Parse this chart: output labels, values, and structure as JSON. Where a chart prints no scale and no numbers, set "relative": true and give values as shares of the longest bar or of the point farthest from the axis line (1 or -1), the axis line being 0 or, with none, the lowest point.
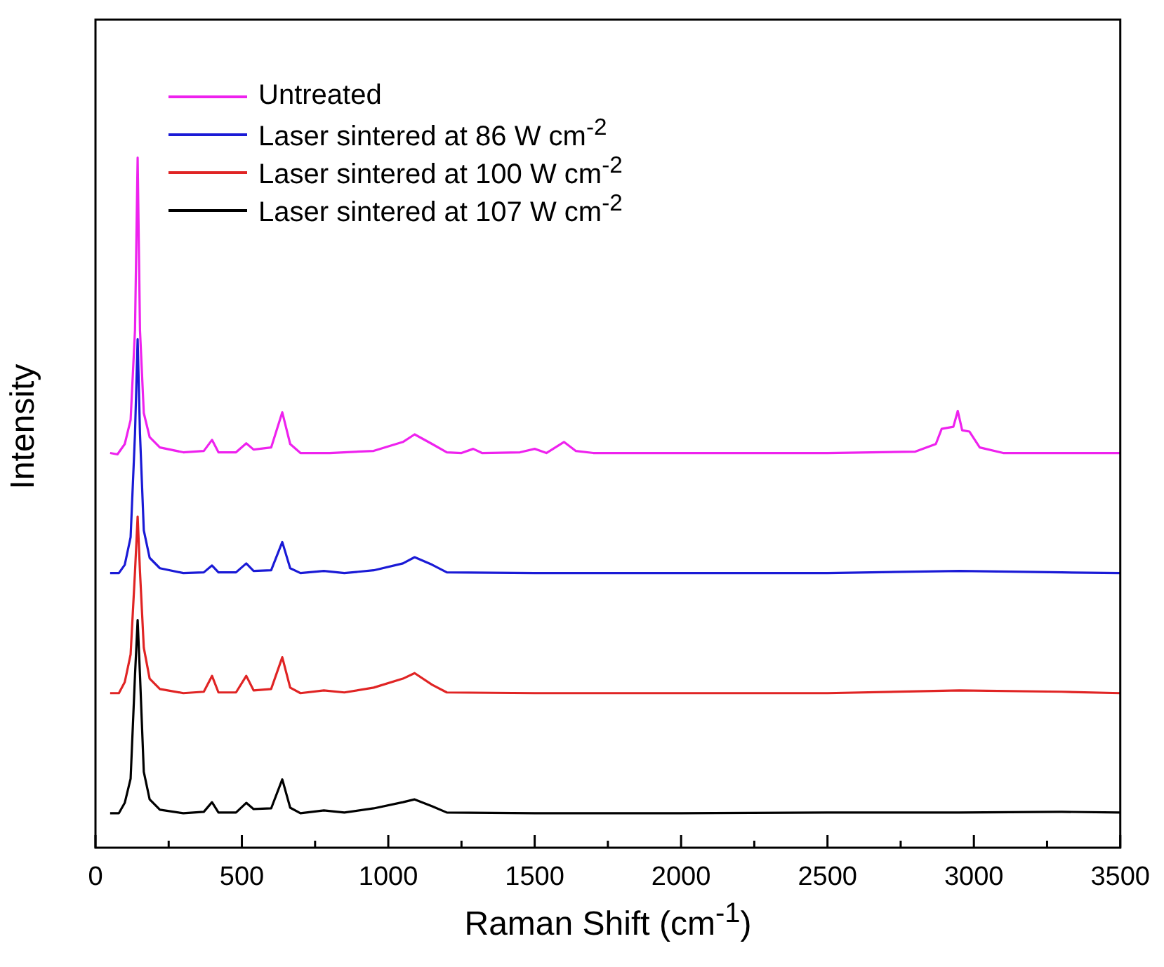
{
  "chart_data": {
    "type": "line",
    "xlabel": "Raman Shift (cm$^{-1}$)",
    "ylabel": "Intensity",
    "relative": true,
    "legend": "top left",
    "marker": "none",
    "xlim": [
      0,
      3500
    ],
    "xticks": [
      0,
      {
        "value": 250,
        "label": null
      },
      500,
      {
        "value": 750,
        "label": null
      },
      1000,
      {
        "value": 1250,
        "label": null
      },
      1500,
      {
        "value": 1750,
        "label": null
      },
      2000,
      {
        "value": 2250,
        "label": null
      },
      2500,
      {
        "value": 2750,
        "label": null
      },
      3000,
      {
        "value": 3250,
        "label": null
      },
      3500
    ],
    "series": [
      {
        "name": "Untreated",
        "color": "#ee22ee",
        "x": [
          50,
          75,
          100,
          120,
          135,
          144,
          152,
          165,
          185,
          220,
          300,
          370,
          398,
          420,
          480,
          515,
          540,
          600,
          638,
          665,
          700,
          800,
          950,
          1050,
          1090,
          1150,
          1200,
          1250,
          1290,
          1320,
          1450,
          1500,
          1540,
          1600,
          1640,
          1700,
          2000,
          2500,
          2800,
          2870,
          2890,
          2930,
          2945,
          2960,
          2985,
          3020,
          3100,
          3500
        ],
        "values": [
          0.572,
          0.57,
          0.585,
          0.62,
          0.75,
          1.0,
          0.75,
          0.63,
          0.595,
          0.58,
          0.573,
          0.575,
          0.591,
          0.573,
          0.573,
          0.586,
          0.577,
          0.58,
          0.631,
          0.585,
          0.572,
          0.572,
          0.575,
          0.588,
          0.599,
          0.585,
          0.573,
          0.572,
          0.578,
          0.572,
          0.573,
          0.578,
          0.572,
          0.588,
          0.575,
          0.572,
          0.572,
          0.572,
          0.574,
          0.585,
          0.607,
          0.61,
          0.633,
          0.605,
          0.603,
          0.58,
          0.572,
          0.572
        ]
      },
      {
        "name": "Laser sintered at 86 W cm$^{-2}$",
        "color": "#1a1ad6",
        "x": [
          50,
          80,
          100,
          120,
          135,
          144,
          152,
          165,
          185,
          220,
          300,
          370,
          398,
          420,
          480,
          515,
          540,
          600,
          638,
          665,
          700,
          780,
          850,
          950,
          1050,
          1090,
          1150,
          1200,
          1500,
          2000,
          2500,
          2950,
          3300,
          3500
        ],
        "values": [
          0.398,
          0.398,
          0.41,
          0.45,
          0.6,
          0.737,
          0.6,
          0.46,
          0.42,
          0.405,
          0.398,
          0.399,
          0.409,
          0.399,
          0.399,
          0.412,
          0.401,
          0.402,
          0.443,
          0.405,
          0.398,
          0.401,
          0.398,
          0.402,
          0.412,
          0.421,
          0.41,
          0.399,
          0.398,
          0.398,
          0.398,
          0.401,
          0.399,
          0.398
        ]
      },
      {
        "name": "Laser sintered at 100 W cm$^{-2}$",
        "color": "#e02424",
        "x": [
          50,
          80,
          100,
          120,
          135,
          144,
          152,
          165,
          185,
          220,
          300,
          370,
          398,
          420,
          480,
          515,
          540,
          600,
          638,
          665,
          700,
          780,
          850,
          950,
          1050,
          1090,
          1150,
          1200,
          1500,
          2000,
          2500,
          2950,
          3300,
          3500
        ],
        "values": [
          0.224,
          0.224,
          0.24,
          0.28,
          0.4,
          0.48,
          0.4,
          0.29,
          0.245,
          0.23,
          0.224,
          0.226,
          0.249,
          0.225,
          0.225,
          0.249,
          0.228,
          0.23,
          0.276,
          0.232,
          0.224,
          0.228,
          0.225,
          0.232,
          0.245,
          0.253,
          0.236,
          0.225,
          0.224,
          0.224,
          0.224,
          0.228,
          0.226,
          0.224
        ]
      },
      {
        "name": "Laser sintered at 107 W cm$^{-2}$",
        "color": "#000000",
        "x": [
          50,
          80,
          100,
          120,
          135,
          144,
          152,
          165,
          185,
          220,
          300,
          370,
          398,
          420,
          480,
          515,
          540,
          600,
          638,
          665,
          700,
          780,
          850,
          950,
          1050,
          1090,
          1150,
          1200,
          1500,
          2000,
          2500,
          2950,
          3300,
          3500
        ],
        "values": [
          0.05,
          0.05,
          0.065,
          0.1,
          0.25,
          0.33,
          0.25,
          0.11,
          0.07,
          0.055,
          0.05,
          0.052,
          0.066,
          0.051,
          0.051,
          0.065,
          0.056,
          0.057,
          0.099,
          0.058,
          0.05,
          0.054,
          0.051,
          0.057,
          0.066,
          0.07,
          0.06,
          0.051,
          0.05,
          0.05,
          0.051,
          0.051,
          0.052,
          0.051
        ]
      }
    ]
  }
}
